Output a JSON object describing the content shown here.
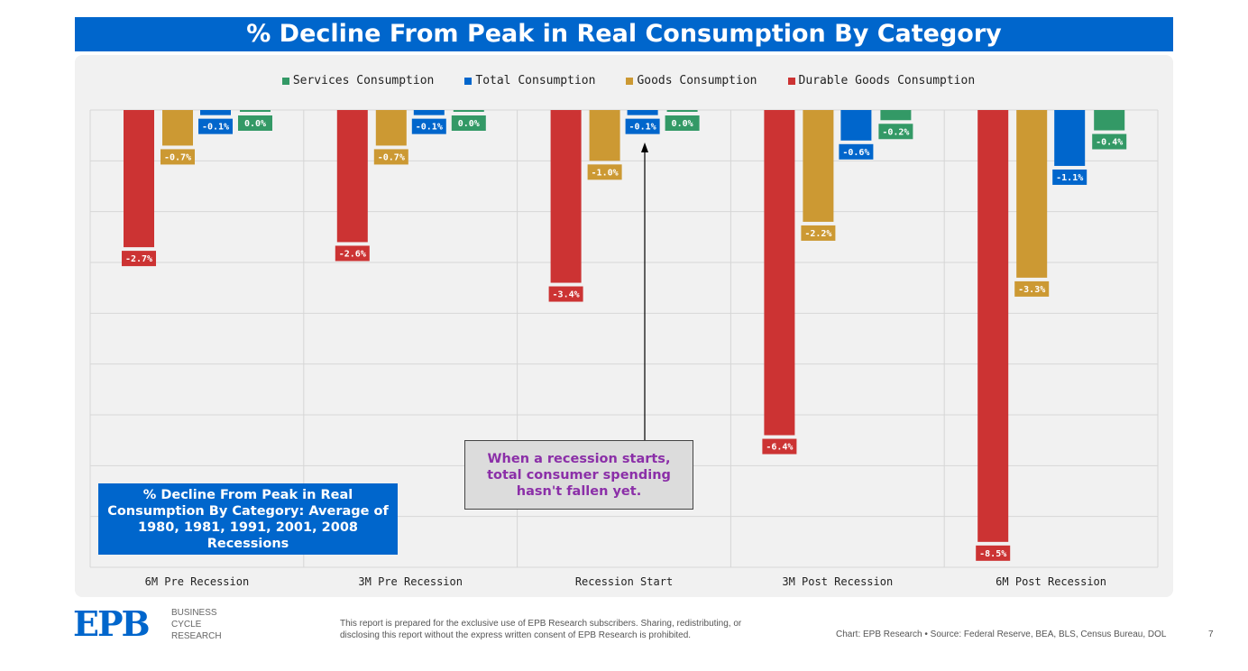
{
  "title": "% Decline From Peak in Real Consumption By Category",
  "chart_data": {
    "type": "bar",
    "title": "% Decline From Peak in Real Consumption By Category",
    "categories": [
      "6M Pre Recession",
      "3M Pre Recession",
      "Recession Start",
      "3M Post Recession",
      "6M Post Recession"
    ],
    "series": [
      {
        "name": "Durable Goods Consumption",
        "color": "#cc3333",
        "values": [
          -2.7,
          -2.6,
          -3.4,
          -6.4,
          -8.5
        ]
      },
      {
        "name": "Goods Consumption",
        "color": "#cc9933",
        "values": [
          -0.7,
          -0.7,
          -1.0,
          -2.2,
          -3.3
        ]
      },
      {
        "name": "Total Consumption",
        "color": "#0066cc",
        "values": [
          -0.1,
          -0.1,
          -0.1,
          -0.6,
          -1.1
        ]
      },
      {
        "name": "Services Consumption",
        "color": "#339966",
        "values": [
          0.0,
          0.0,
          0.0,
          -0.2,
          -0.4
        ]
      }
    ],
    "legend_order": [
      "Services Consumption",
      "Total Consumption",
      "Goods Consumption",
      "Durable Goods Consumption"
    ],
    "ylim": [
      -9,
      0
    ],
    "grid": true,
    "legend_position": "top-center",
    "xlabel": "",
    "ylabel": ""
  },
  "note": "% Decline From Peak in Real Consumption By Category: Average of 1980, 1981, 1991, 2001, 2008 Recessions",
  "callout": "When a recession starts, total consumer spending hasn't fallen yet.",
  "footer": {
    "logo": "EPB",
    "logo_text": [
      "BUSINESS",
      "CYCLE",
      "RESEARCH"
    ],
    "disclaimer": "This report is prepared for the exclusive use of EPB Research subscribers. Sharing, redistributing, or disclosing this report without the express written consent of EPB Research is prohibited.",
    "source": "Chart: EPB Research  •  Source: Federal Reserve, BEA, BLS, Census Bureau, DOL",
    "page": "7"
  }
}
